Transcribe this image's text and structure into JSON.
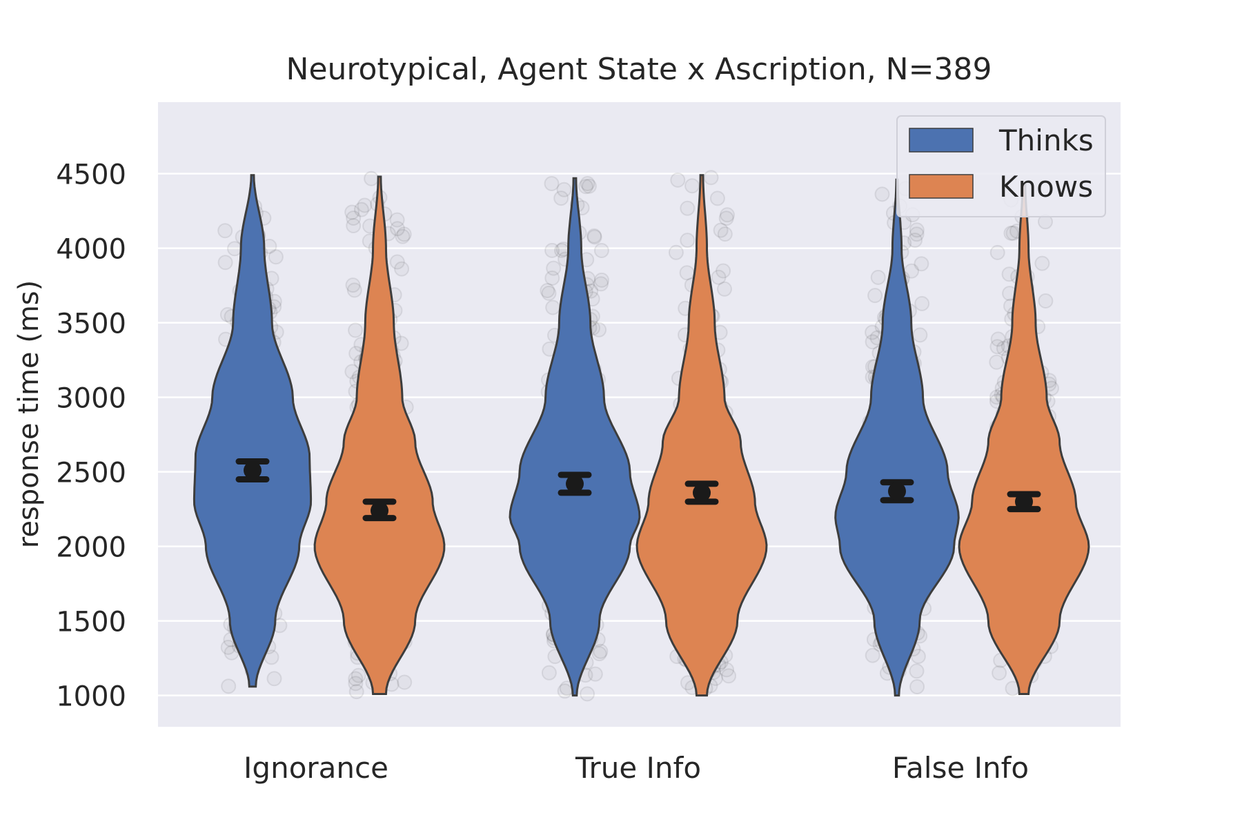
{
  "chart_data": {
    "type": "violin",
    "title": "Neurotypical, Agent State x Ascription,  N=389",
    "xlabel": "",
    "ylabel": "response time (ms)",
    "ylim": [
      790,
      4980
    ],
    "yticks": [
      1000,
      1500,
      2000,
      2500,
      3000,
      3500,
      4000,
      4500
    ],
    "categories": [
      "Ignorance",
      "True Info",
      "False Info"
    ],
    "legend": {
      "position": "top-right",
      "entries": [
        "Thinks",
        "Knows"
      ]
    },
    "colors": {
      "Thinks": "#4c72b0",
      "Knows": "#dd8452",
      "background": "#eaeaf2",
      "grid": "#ffffff",
      "outline": "#3d3d3d",
      "points": "#000000",
      "errorbar": "#1a1a1a"
    },
    "series": [
      {
        "name": "Thinks",
        "violins": [
          {
            "category": "Ignorance",
            "min": 1060,
            "max": 4490,
            "mean": 2510,
            "ci": [
              2450,
              2570
            ],
            "profile": [
              [
                1060,
                0.05
              ],
              [
                1500,
                0.35
              ],
              [
                2000,
                0.72
              ],
              [
                2300,
                0.9
              ],
              [
                2600,
                0.88
              ],
              [
                3000,
                0.62
              ],
              [
                3500,
                0.3
              ],
              [
                4000,
                0.18
              ],
              [
                4490,
                0.02
              ]
            ]
          },
          {
            "category": "True Info",
            "min": 1000,
            "max": 4470,
            "mean": 2420,
            "ci": [
              2360,
              2480
            ],
            "profile": [
              [
                1000,
                0.03
              ],
              [
                1500,
                0.38
              ],
              [
                2000,
                0.85
              ],
              [
                2200,
                1.0
              ],
              [
                2500,
                0.85
              ],
              [
                3000,
                0.45
              ],
              [
                3500,
                0.24
              ],
              [
                4000,
                0.1
              ],
              [
                4470,
                0.02
              ]
            ]
          },
          {
            "category": "False Info",
            "min": 1000,
            "max": 4460,
            "mean": 2370,
            "ci": [
              2310,
              2430
            ],
            "profile": [
              [
                1000,
                0.03
              ],
              [
                1500,
                0.35
              ],
              [
                2000,
                0.88
              ],
              [
                2200,
                0.95
              ],
              [
                2500,
                0.78
              ],
              [
                3000,
                0.4
              ],
              [
                3500,
                0.22
              ],
              [
                4000,
                0.07
              ],
              [
                4460,
                0.01
              ]
            ]
          }
        ]
      },
      {
        "name": "Knows",
        "violins": [
          {
            "category": "Ignorance",
            "min": 1010,
            "max": 4480,
            "mean": 2240,
            "ci": [
              2190,
              2300
            ],
            "profile": [
              [
                1010,
                0.1
              ],
              [
                1500,
                0.55
              ],
              [
                2000,
                1.0
              ],
              [
                2300,
                0.82
              ],
              [
                2700,
                0.55
              ],
              [
                3000,
                0.35
              ],
              [
                3500,
                0.22
              ],
              [
                4000,
                0.1
              ],
              [
                4480,
                0.02
              ]
            ]
          },
          {
            "category": "True Info",
            "min": 1000,
            "max": 4490,
            "mean": 2360,
            "ci": [
              2300,
              2420
            ],
            "profile": [
              [
                1000,
                0.08
              ],
              [
                1500,
                0.55
              ],
              [
                2000,
                1.0
              ],
              [
                2300,
                0.82
              ],
              [
                2700,
                0.6
              ],
              [
                3000,
                0.35
              ],
              [
                3500,
                0.2
              ],
              [
                4000,
                0.08
              ],
              [
                4490,
                0.02
              ]
            ]
          },
          {
            "category": "False Info",
            "min": 1010,
            "max": 4430,
            "mean": 2300,
            "ci": [
              2250,
              2350
            ],
            "profile": [
              [
                1010,
                0.07
              ],
              [
                1500,
                0.55
              ],
              [
                2000,
                1.0
              ],
              [
                2300,
                0.8
              ],
              [
                2700,
                0.55
              ],
              [
                3000,
                0.35
              ],
              [
                3500,
                0.18
              ],
              [
                4000,
                0.07
              ],
              [
                4430,
                0.02
              ]
            ]
          }
        ]
      }
    ]
  }
}
